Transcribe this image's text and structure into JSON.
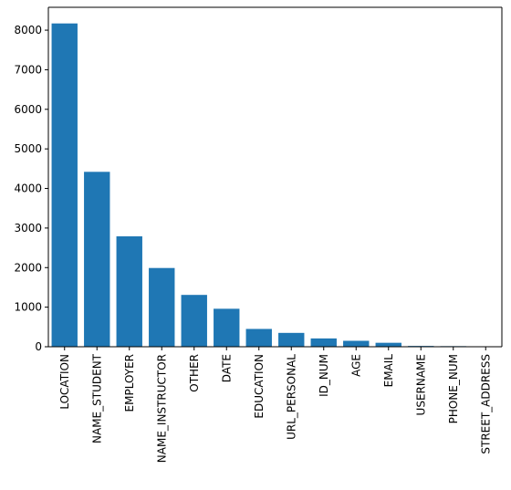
{
  "chart_data": {
    "type": "bar",
    "title": "",
    "xlabel": "",
    "ylabel": "",
    "categories": [
      "LOCATION",
      "NAME_STUDENT",
      "EMPLOYER",
      "NAME_INSTRUCTOR",
      "OTHER",
      "DATE",
      "EDUCATION",
      "URL_PERSONAL",
      "ID_NUM",
      "AGE",
      "EMAIL",
      "USERNAME",
      "PHONE_NUM",
      "STREET_ADDRESS"
    ],
    "values": [
      8170,
      4420,
      2790,
      1990,
      1310,
      960,
      450,
      350,
      210,
      150,
      100,
      20,
      15,
      10
    ],
    "ylim": [
      0,
      8578
    ],
    "yticks": [
      0,
      1000,
      2000,
      3000,
      4000,
      5000,
      6000,
      7000,
      8000
    ],
    "bar_color": "#1f77b4",
    "grid": false,
    "legend": "none"
  }
}
